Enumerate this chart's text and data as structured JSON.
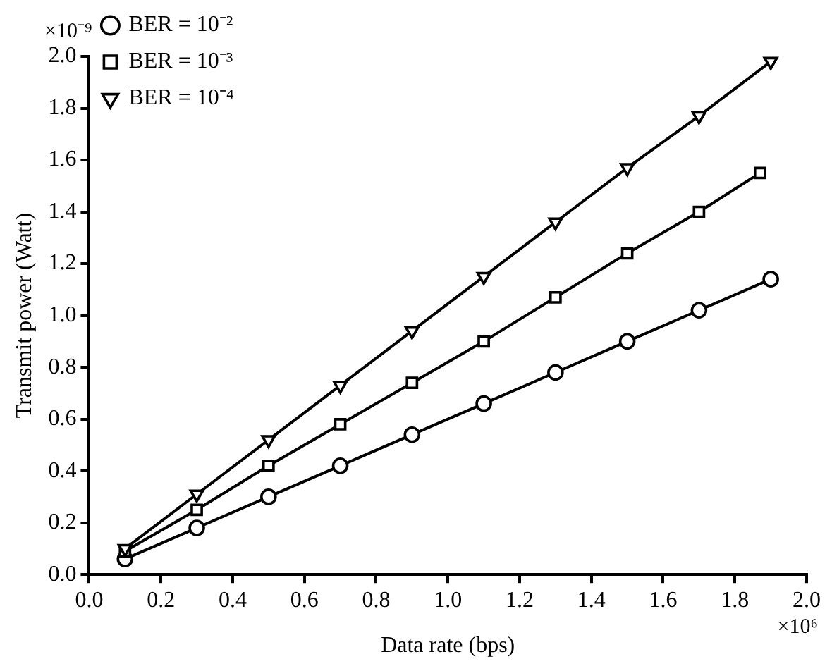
{
  "chart_data": {
    "type": "line",
    "xlabel": "Data rate (bps)",
    "ylabel": "Transmit power (Watt)",
    "xlim": [
      0,
      2.0
    ],
    "xticks": [
      {
        "value": 0,
        "label": "0.0"
      },
      0.2,
      0.4,
      0.6,
      0.8,
      {
        "value": 1,
        "label": "1.0"
      },
      1.2,
      1.4,
      1.6,
      1.8,
      {
        "value": 2,
        "label": "2.0"
      }
    ],
    "ylim": [
      0,
      2.0
    ],
    "yticks": [
      {
        "value": 0,
        "label": "0.0"
      },
      0.2,
      0.4,
      0.6,
      0.8,
      {
        "value": 1,
        "label": "1.0"
      },
      1.2,
      1.4,
      1.6,
      1.8,
      {
        "value": 2,
        "label": "2.0"
      }
    ],
    "annotations": [
      "×10⁻⁹",
      "×10⁶"
    ],
    "grid": false,
    "legend": "top left",
    "line_style": "solid",
    "series": [
      {
        "name": "BER = 10⁻²",
        "color": "#000000",
        "marker": "circle",
        "x": [
          0.1,
          0.3,
          0.5,
          0.7,
          0.9,
          1.1,
          1.3,
          1.5,
          1.7,
          1.9
        ],
        "values": [
          0.06,
          0.18,
          0.3,
          0.42,
          0.54,
          0.66,
          0.78,
          0.9,
          1.02,
          1.14
        ]
      },
      {
        "name": "BER = 10⁻³",
        "color": "#000000",
        "marker": "square",
        "x": [
          0.1,
          0.3,
          0.5,
          0.7,
          0.9,
          1.1,
          1.3,
          1.5,
          1.7,
          1.87
        ],
        "values": [
          0.09,
          0.25,
          0.42,
          0.58,
          0.74,
          0.9,
          1.07,
          1.24,
          1.4,
          1.55
        ]
      },
      {
        "name": "BER = 10⁻⁴",
        "color": "#000000",
        "marker": "triangle",
        "x": [
          0.1,
          0.3,
          0.5,
          0.7,
          0.9,
          1.1,
          1.3,
          1.5,
          1.7,
          1.9
        ],
        "values": [
          0.1,
          0.31,
          0.52,
          0.73,
          0.94,
          1.15,
          1.36,
          1.57,
          1.77,
          1.98
        ]
      }
    ]
  }
}
